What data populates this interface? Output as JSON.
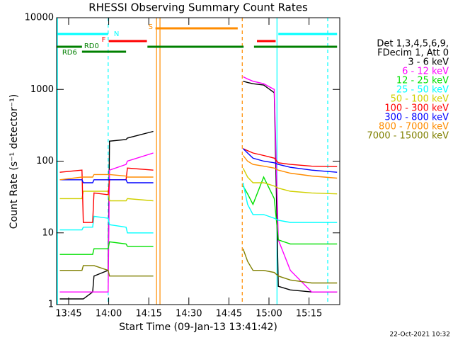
{
  "chart_data": {
    "type": "line",
    "title": "RHESSI Observing Summary Count Rates",
    "x_label": "Start Time (09-Jan-13 13:41:42)",
    "y_label": "Count Rate (s⁻¹ detector⁻¹)",
    "legend_header": [
      "Det 1,3,4,5,6,9,",
      "FDecim 1, Att 0"
    ],
    "footer": "22-Oct-2021 10:32",
    "log_y": true,
    "xlim": [
      40.5,
      146.5
    ],
    "xticks": [
      {
        "value": 45,
        "label": "13:45"
      },
      {
        "value": 60,
        "label": "14:00"
      },
      {
        "value": 75,
        "label": "14:15"
      },
      {
        "value": 90,
        "label": "14:30"
      },
      {
        "value": 105,
        "label": "14:45"
      },
      {
        "value": 120,
        "label": "15:00"
      },
      {
        "value": 135,
        "label": "15:15"
      }
    ],
    "ylim": [
      1,
      10000
    ],
    "yticks": [
      1,
      10,
      100,
      1000,
      10000
    ],
    "x": [
      41.7,
      50.0,
      50.5,
      54.0,
      54.5,
      59.8,
      60.3,
      66.5,
      67.0,
      76.7,
      90,
      110.3,
      112,
      114,
      118,
      122,
      123.5,
      128,
      136,
      145.5
    ],
    "series": [
      {
        "name": "3 - 6 keV",
        "color": "#000000",
        "values": [
          1.2,
          1.2,
          1.2,
          1.5,
          2.5,
          3,
          190,
          200,
          210,
          260,
          null,
          1300,
          1250,
          1200,
          1150,
          900,
          1.8,
          1.6,
          1.5,
          1.5
        ]
      },
      {
        "name": "6 - 12 keV",
        "color": "#ff00ff",
        "values": [
          1.5,
          1.5,
          1.5,
          1.5,
          1.5,
          1.5,
          75,
          90,
          100,
          130,
          null,
          1500,
          1400,
          1300,
          1200,
          1000,
          8,
          3,
          1.5,
          1.5
        ]
      },
      {
        "name": "12 - 25 keV",
        "color": "#00e000",
        "values": [
          5,
          5,
          5,
          5,
          6,
          6,
          7.5,
          7,
          6.5,
          6.5,
          null,
          45,
          35,
          25,
          60,
          30,
          8,
          7,
          7,
          7
        ]
      },
      {
        "name": "25 - 50 keV",
        "color": "#00ffff",
        "values": [
          11,
          11,
          12,
          12,
          17,
          16,
          13,
          12,
          10,
          10,
          null,
          50,
          25,
          18,
          18,
          16,
          15,
          14,
          14,
          14
        ]
      },
      {
        "name": "50 - 100 keV",
        "color": "#d0d000",
        "values": [
          30,
          30,
          38,
          38,
          38,
          38,
          28,
          28,
          30,
          28,
          null,
          80,
          60,
          50,
          50,
          45,
          42,
          38,
          36,
          35
        ]
      },
      {
        "name": "100 - 300 keV",
        "color": "#ff0000",
        "values": [
          70,
          75,
          14,
          14,
          36,
          34,
          55,
          55,
          80,
          75,
          null,
          150,
          140,
          130,
          120,
          110,
          95,
          90,
          85,
          84
        ]
      },
      {
        "name": "300 - 800 keV",
        "color": "#0000ff",
        "values": [
          55,
          55,
          50,
          50,
          55,
          55,
          55,
          55,
          50,
          50,
          null,
          150,
          130,
          110,
          100,
          95,
          90,
          82,
          75,
          70
        ]
      },
      {
        "name": "800 - 7000 keV",
        "color": "#ff8c00",
        "values": [
          55,
          60,
          60,
          60,
          65,
          65,
          65,
          62,
          60,
          60,
          null,
          120,
          100,
          90,
          85,
          80,
          75,
          68,
          62,
          58
        ]
      },
      {
        "name": "7000 - 15000 keV",
        "color": "#808000",
        "values": [
          3,
          3,
          3.5,
          3.5,
          3.5,
          3,
          2.5,
          2.5,
          2.5,
          2.5,
          null,
          6,
          4,
          3,
          3,
          2.8,
          2.5,
          2.2,
          2,
          2
        ]
      }
    ],
    "flags": [
      {
        "label": "S",
        "color": "#ff8c00",
        "spans": [
          [
            77.5,
            108.3
          ]
        ]
      },
      {
        "label": "N",
        "color": "#00ffff",
        "spans": [
          [
            40.5,
            59.8
          ],
          [
            123.5,
            145.5
          ]
        ]
      },
      {
        "label": "F",
        "color": "#ff0000",
        "spans": [
          [
            60,
            74.3
          ],
          [
            115.5,
            122.5
          ]
        ]
      },
      {
        "label": "RD0",
        "color": "#008000",
        "spans": [
          [
            40.5,
            50
          ],
          [
            74.5,
            110.5
          ],
          [
            114.4,
            145.5
          ]
        ]
      },
      {
        "label": "RD6",
        "color": "#008000",
        "spans": [
          [
            50,
            66.5
          ]
        ]
      }
    ],
    "markers": [
      {
        "x": 40.8,
        "color": "#00ffff",
        "dashed": false
      },
      {
        "x": 59.8,
        "color": "#00ffff",
        "dashed": true
      },
      {
        "x": 77.9,
        "color": "#ff8c00",
        "dashed": false
      },
      {
        "x": 79.2,
        "color": "#ff8c00",
        "dashed": false
      },
      {
        "x": 110,
        "color": "#ff8c00",
        "dashed": true
      },
      {
        "x": 123,
        "color": "#00ffff",
        "dashed": false
      },
      {
        "x": 142,
        "color": "#00ffff",
        "dashed": true
      }
    ]
  }
}
